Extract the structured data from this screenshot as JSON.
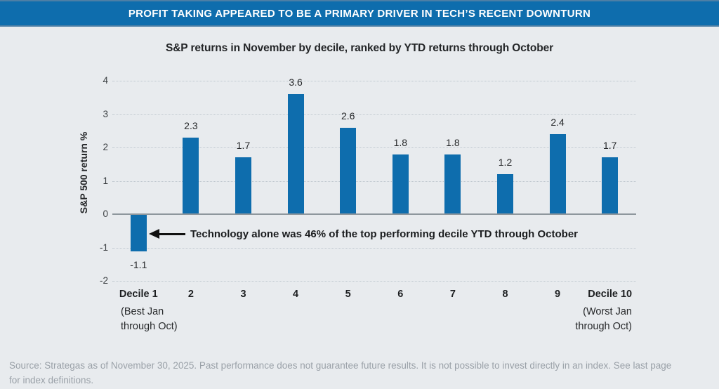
{
  "banner": {
    "title": "PROFIT TAKING APPEARED TO BE A PRIMARY DRIVER IN TECH’S RECENT DOWNTURN"
  },
  "chart_data": {
    "type": "bar",
    "title": "S&P returns in November by decile, ranked by YTD returns through October",
    "ylabel": "S&P 500 return %",
    "xlabel": "",
    "categories": [
      "Decile 1",
      "2",
      "3",
      "4",
      "5",
      "6",
      "7",
      "8",
      "9",
      "Decile 10"
    ],
    "values": [
      -1.1,
      2.3,
      1.7,
      3.6,
      2.6,
      1.8,
      1.8,
      1.2,
      2.4,
      1.7
    ],
    "first_category_sublabel": [
      "(Best Jan",
      "through Oct)"
    ],
    "last_category_sublabel": [
      "(Worst Jan",
      "through Oct)"
    ],
    "yticks": [
      4,
      3,
      2,
      1,
      0,
      -1,
      -2
    ],
    "ylim": [
      -2,
      4
    ],
    "grid": "dotted-horizontal",
    "legend": "none",
    "annotation": {
      "text": "Technology alone was 46% of the top performing decile YTD through October",
      "arrow": "points-left-from-text-to-decile-1-bar"
    }
  },
  "colors": {
    "background": "#e8ebee",
    "banner": "#0e6dad",
    "bar": "#0e6dad",
    "gridline": "#bfc8cf",
    "zero_line": "#8e979d",
    "footer_text": "#9aa1a8"
  },
  "footer": {
    "line1": "Source: Strategas as of November 30, 2025. Past performance does not guarantee future results. It is not possible to invest directly in an index. See last page",
    "line2": "for index definitions."
  }
}
